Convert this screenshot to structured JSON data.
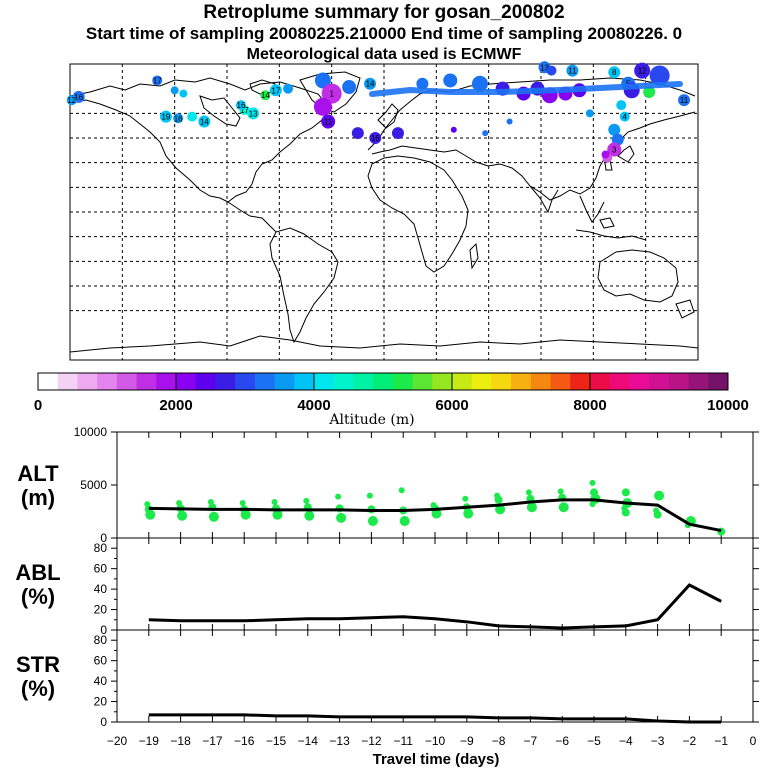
{
  "header": {
    "title": "Retroplume summary for gosan_200802",
    "subtitle": "Start time of sampling 20080225.210000     End time of sampling 20080226.     0",
    "met_line": "Meteorological data used is ECMWF"
  },
  "colorbar": {
    "label": "Altitude (m)",
    "ticks": [
      "0",
      "2000",
      "4000",
      "6000",
      "8000",
      "10000"
    ],
    "colors": [
      "#ffffff",
      "#f4d2f4",
      "#eeaaf0",
      "#e484ee",
      "#d35ae6",
      "#c02ee6",
      "#a810ec",
      "#8a00f0",
      "#5c00ee",
      "#3a1ee6",
      "#2a48f0",
      "#1c72f4",
      "#0a9af2",
      "#00c4f6",
      "#00e6ee",
      "#00f4cc",
      "#00f2a4",
      "#00ee78",
      "#1cea4a",
      "#5ae632",
      "#96e620",
      "#c8ea14",
      "#ecee10",
      "#f6d810",
      "#f6b010",
      "#f68810",
      "#f45a14",
      "#ee2418",
      "#ee0c48",
      "#ee0a78",
      "#e80c98",
      "#d21094",
      "#b81486",
      "#961478",
      "#74126a"
    ]
  },
  "map": {
    "points": [
      {
        "lon": -175,
        "lat": 70,
        "c": "#1c72f4",
        "label": "16",
        "r": 6
      },
      {
        "lon": -179,
        "lat": 68,
        "c": "#0a9af2",
        "label": "12",
        "r": 5
      },
      {
        "lon": -130,
        "lat": 80,
        "c": "#1c72f4",
        "label": "17",
        "r": 5
      },
      {
        "lon": -120,
        "lat": 74,
        "c": "#0a9af2",
        "label": "",
        "r": 4
      },
      {
        "lon": -115,
        "lat": 72,
        "c": "#00c4f6",
        "label": "",
        "r": 4
      },
      {
        "lon": -125,
        "lat": 58,
        "c": "#00c4f6",
        "label": "19",
        "r": 6
      },
      {
        "lon": -118,
        "lat": 57,
        "c": "#0a9af2",
        "label": "16",
        "r": 5
      },
      {
        "lon": -110,
        "lat": 58,
        "c": "#00e6ee",
        "label": "",
        "r": 5
      },
      {
        "lon": -103,
        "lat": 55,
        "c": "#00c4f6",
        "label": "14",
        "r": 6
      },
      {
        "lon": -80,
        "lat": 62,
        "c": "#00f4cc",
        "label": "17",
        "r": 5
      },
      {
        "lon": -75,
        "lat": 60,
        "c": "#00e6ee",
        "label": "13",
        "r": 6
      },
      {
        "lon": -82,
        "lat": 65,
        "c": "#00c4f6",
        "label": "16",
        "r": 5
      },
      {
        "lon": -62,
        "lat": 74,
        "c": "#00c4f6",
        "label": "17",
        "r": 6
      },
      {
        "lon": -55,
        "lat": 75,
        "c": "#0a9af2",
        "label": "",
        "r": 5
      },
      {
        "lon": -68,
        "lat": 71,
        "c": "#1cea4a",
        "label": "14",
        "r": 5
      },
      {
        "lon": -35,
        "lat": 80,
        "c": "#1c72f4",
        "label": "",
        "r": 8
      },
      {
        "lon": -30,
        "lat": 72,
        "c": "#c02ee6",
        "label": "1",
        "r": 10
      },
      {
        "lon": -35,
        "lat": 64,
        "c": "#a810ec",
        "label": "",
        "r": 9
      },
      {
        "lon": -32,
        "lat": 55,
        "c": "#5c00ee",
        "label": "11",
        "r": 7
      },
      {
        "lon": -20,
        "lat": 76,
        "c": "#1c72f4",
        "label": "",
        "r": 7
      },
      {
        "lon": -8,
        "lat": 78,
        "c": "#0a9af2",
        "label": "14",
        "r": 6
      },
      {
        "lon": -15,
        "lat": 48,
        "c": "#3a1ee6",
        "label": "",
        "r": 6
      },
      {
        "lon": -5,
        "lat": 45,
        "c": "#3a1ee6",
        "label": "16",
        "r": 6
      },
      {
        "lon": 8,
        "lat": 48,
        "c": "#3a1ee6",
        "label": "",
        "r": 6
      },
      {
        "lon": 22,
        "lat": 78,
        "c": "#1c72f4",
        "label": "",
        "r": 6
      },
      {
        "lon": 38,
        "lat": 80,
        "c": "#1c72f4",
        "label": "",
        "r": 7
      },
      {
        "lon": 55,
        "lat": 78,
        "c": "#1c72f4",
        "label": "",
        "r": 8
      },
      {
        "lon": 68,
        "lat": 75,
        "c": "#3a1ee6",
        "label": "",
        "r": 7
      },
      {
        "lon": 80,
        "lat": 72,
        "c": "#5c00ee",
        "label": "",
        "r": 7
      },
      {
        "lon": 88,
        "lat": 75,
        "c": "#3a1ee6",
        "label": "",
        "r": 7
      },
      {
        "lon": 95,
        "lat": 71,
        "c": "#8a00f0",
        "label": "",
        "r": 8
      },
      {
        "lon": 104,
        "lat": 72,
        "c": "#8a00f0",
        "label": "",
        "r": 7
      },
      {
        "lon": 112,
        "lat": 74,
        "c": "#5c00ee",
        "label": "",
        "r": 7
      },
      {
        "lon": 92,
        "lat": 88,
        "c": "#1c72f4",
        "label": "13",
        "r": 6
      },
      {
        "lon": 96,
        "lat": 86,
        "c": "#2a48f0",
        "label": "",
        "r": 5
      },
      {
        "lon": 108,
        "lat": 86,
        "c": "#0a9af2",
        "label": "11",
        "r": 6
      },
      {
        "lon": 132,
        "lat": 85,
        "c": "#00c4f6",
        "label": "8",
        "r": 6
      },
      {
        "lon": 140,
        "lat": 78,
        "c": "#1c72f4",
        "label": "5",
        "r": 7
      },
      {
        "lon": 148,
        "lat": 86,
        "c": "#3a1ee6",
        "label": "12",
        "r": 8
      },
      {
        "lon": 158,
        "lat": 83,
        "c": "#2a48f0",
        "label": "",
        "r": 10
      },
      {
        "lon": 152,
        "lat": 73,
        "c": "#1cea4a",
        "label": "",
        "r": 6
      },
      {
        "lon": 142,
        "lat": 74,
        "c": "#3a1ee6",
        "label": "",
        "r": 8
      },
      {
        "lon": 136,
        "lat": 65,
        "c": "#00c4f6",
        "label": "",
        "r": 5
      },
      {
        "lon": 138,
        "lat": 58,
        "c": "#00c4f6",
        "label": "4",
        "r": 5
      },
      {
        "lon": 132,
        "lat": 50,
        "c": "#0a9af2",
        "label": "",
        "r": 6
      },
      {
        "lon": 134,
        "lat": 44,
        "c": "#1c72f4",
        "label": "",
        "r": 6
      },
      {
        "lon": 132,
        "lat": 38,
        "c": "#c02ee6",
        "label": "3",
        "r": 7
      },
      {
        "lon": 128,
        "lat": 33,
        "c": "#d35ae6",
        "label": "",
        "r": 5
      },
      {
        "lon": 127,
        "lat": 35,
        "c": "#a810ec",
        "label": "",
        "r": 4
      },
      {
        "lon": 172,
        "lat": 68,
        "c": "#1c72f4",
        "label": "11",
        "r": 6
      },
      {
        "lon": 118,
        "lat": 60,
        "c": "#0a9af2",
        "label": "",
        "r": 4
      },
      {
        "lon": 40,
        "lat": 50,
        "c": "#5c00ee",
        "label": "",
        "r": 3
      },
      {
        "lon": 58,
        "lat": 48,
        "c": "#1c72f4",
        "label": "",
        "r": 3
      },
      {
        "lon": 72,
        "lat": 55,
        "c": "#1c72f4",
        "label": "",
        "r": 3
      }
    ]
  },
  "chart_data": [
    {
      "type": "scatter",
      "panel": "ALT",
      "ylabel": "ALT\n(m)",
      "ylabel_line1": "ALT",
      "ylabel_line2": "(m)",
      "xlim": [
        -20,
        0
      ],
      "ylim": [
        0,
        10000
      ],
      "yticks": [
        "0",
        "5000",
        "10000"
      ],
      "line": {
        "x": [
          -19,
          -18,
          -17,
          -16,
          -15,
          -14,
          -13,
          -12,
          -11,
          -10,
          -9,
          -8,
          -7,
          -6,
          -5,
          -4,
          -3,
          -2,
          -1
        ],
        "y": [
          2800,
          2750,
          2700,
          2700,
          2650,
          2650,
          2650,
          2600,
          2600,
          2700,
          2900,
          3100,
          3400,
          3600,
          3600,
          3300,
          3100,
          1300,
          700
        ]
      },
      "points": {
        "x": [
          -19,
          -19,
          -19,
          -18,
          -18,
          -18,
          -17,
          -17,
          -17,
          -16,
          -16,
          -16,
          -15,
          -15,
          -15,
          -14,
          -14,
          -14,
          -13,
          -13,
          -13,
          -12,
          -12,
          -12,
          -11,
          -11,
          -11,
          -10,
          -10,
          -10,
          -9,
          -9,
          -9,
          -8,
          -8,
          -8,
          -7,
          -7,
          -7,
          -6,
          -6,
          -6,
          -5,
          -5,
          -5,
          -5,
          -4,
          -4,
          -4,
          -4,
          -3,
          -3,
          -3,
          -2,
          -2,
          -1
        ],
        "y": [
          3200,
          2700,
          2200,
          3300,
          2800,
          2100,
          3400,
          2900,
          2000,
          3300,
          2700,
          2200,
          3400,
          2800,
          2200,
          3500,
          2900,
          2100,
          3900,
          2800,
          1900,
          4000,
          2700,
          1600,
          4500,
          2600,
          1600,
          3100,
          2800,
          2300,
          3700,
          2900,
          2300,
          4000,
          3600,
          2700,
          4300,
          3700,
          2900,
          4400,
          3800,
          2900,
          5200,
          4300,
          3700,
          3200,
          4300,
          3300,
          2800,
          2400,
          4000,
          2600,
          2200,
          1600,
          1200,
          600
        ]
      },
      "point_color": "#1cea4a"
    },
    {
      "type": "line",
      "panel": "ABL",
      "ylabel_line1": "ABL",
      "ylabel_line2": "(%)",
      "xlim": [
        -20,
        0
      ],
      "ylim": [
        0,
        90
      ],
      "yticks": [
        "0",
        "20",
        "40",
        "60",
        "80"
      ],
      "x": [
        -19,
        -18,
        -17,
        -16,
        -15,
        -14,
        -13,
        -12,
        -11,
        -10,
        -9,
        -8,
        -7,
        -6,
        -5,
        -4,
        -3,
        -2,
        -1
      ],
      "y": [
        10,
        9,
        9,
        9,
        10,
        11,
        11,
        12,
        13,
        11,
        8,
        4,
        3,
        2,
        3,
        4,
        10,
        44,
        28
      ]
    },
    {
      "type": "line",
      "panel": "STR",
      "ylabel_line1": "STR",
      "ylabel_line2": "(%)",
      "xlim": [
        -20,
        0
      ],
      "ylim": [
        0,
        90
      ],
      "yticks": [
        "0",
        "20",
        "40",
        "60",
        "80"
      ],
      "x": [
        -19,
        -18,
        -17,
        -16,
        -15,
        -14,
        -13,
        -12,
        -11,
        -10,
        -9,
        -8,
        -7,
        -6,
        -5,
        -4,
        -3,
        -2,
        -1
      ],
      "y": [
        7,
        7,
        7,
        7,
        6,
        6,
        5,
        5,
        5,
        5,
        5,
        4,
        4,
        3,
        3,
        3,
        1,
        0,
        0
      ]
    }
  ],
  "xaxis": {
    "label": "Travel time (days)",
    "ticks": [
      "−20",
      "−19",
      "−18",
      "−17",
      "−16",
      "−15",
      "−14",
      "−13",
      "−12",
      "−11",
      "−10",
      "−9",
      "−8",
      "−7",
      "−6",
      "−5",
      "−4",
      "−3",
      "−2",
      "−1",
      "0"
    ]
  }
}
